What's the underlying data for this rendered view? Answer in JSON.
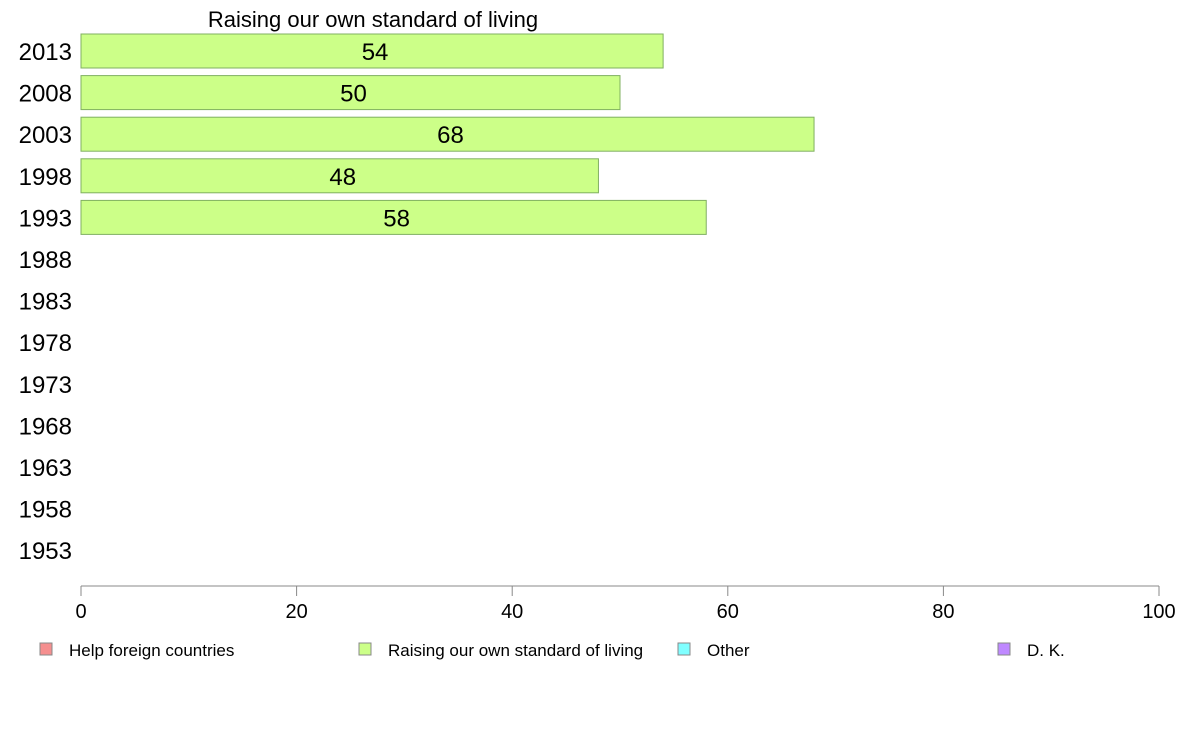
{
  "chart_data": {
    "type": "bar",
    "orientation": "horizontal",
    "title": "Raising our own standard of living",
    "xlim": [
      0,
      100
    ],
    "xticks": [
      0,
      20,
      40,
      60,
      80,
      100
    ],
    "categories": [
      "2013",
      "2008",
      "2003",
      "1998",
      "1993",
      "1988",
      "1983",
      "1978",
      "1973",
      "1968",
      "1963",
      "1958",
      "1953"
    ],
    "series": [
      {
        "name": "Raising our own standard of living",
        "color": "#ccff88",
        "values": [
          54,
          50,
          68,
          48,
          58,
          null,
          null,
          null,
          null,
          null,
          null,
          null,
          null
        ]
      }
    ],
    "legend": [
      {
        "label": "Help foreign countries",
        "color": "#f58f8f"
      },
      {
        "label": "Raising our own standard of living",
        "color": "#ccff88"
      },
      {
        "label": "Other",
        "color": "#80ffff"
      },
      {
        "label": "D. K.",
        "color": "#bf88ff"
      }
    ],
    "legend_position": "bottom",
    "grid": false
  }
}
